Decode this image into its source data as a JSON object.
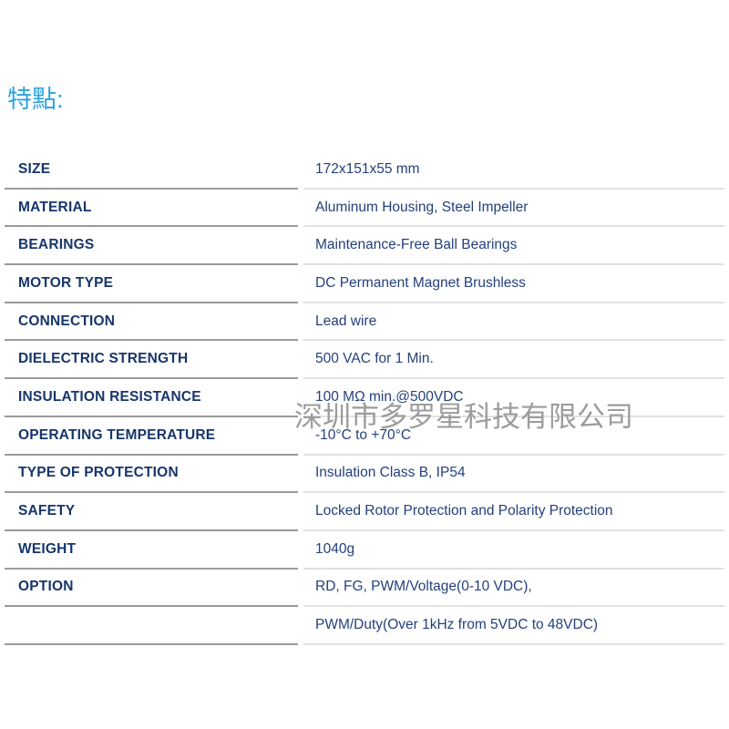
{
  "page": {
    "heading": "特點:",
    "watermark": "深圳市多罗星科技有限公司"
  },
  "colors": {
    "heading": "#2ea2dd",
    "label_text": "#17356b",
    "value_text": "#25407c",
    "label_border": "#9a9a9a",
    "value_border": "#e2e2e2",
    "watermark": "#9c9c9c"
  },
  "spec_table": {
    "rows": [
      {
        "label": "SIZE",
        "value": "172x151x55 mm"
      },
      {
        "label": "MATERIAL",
        "value": "Aluminum Housing, Steel Impeller"
      },
      {
        "label": "BEARINGS",
        "value": "Maintenance-Free Ball Bearings"
      },
      {
        "label": "MOTOR TYPE",
        "value": "DC Permanent Magnet Brushless"
      },
      {
        "label": "CONNECTION",
        "value": "Lead wire"
      },
      {
        "label": "DIELECTRIC STRENGTH",
        "value": "500 VAC for 1 Min."
      },
      {
        "label": "INSULATION RESISTANCE",
        "value": "100 MΩ min.@500VDC"
      },
      {
        "label": "OPERATING TEMPERATURE",
        "value": "-10°C to +70°C"
      },
      {
        "label": "TYPE OF PROTECTION",
        "value": "Insulation Class B, IP54"
      },
      {
        "label": "SAFETY",
        "value": "Locked Rotor Protection and Polarity Protection"
      },
      {
        "label": "WEIGHT",
        "value": "1040g"
      },
      {
        "label": "OPTION",
        "value": "RD, FG, PWM/Voltage(0-10 VDC),"
      },
      {
        "label": "",
        "value": "PWM/Duty(Over 1kHz from 5VDC to 48VDC)"
      }
    ]
  }
}
